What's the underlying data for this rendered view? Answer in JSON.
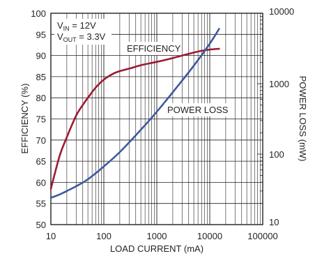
{
  "chart_data": {
    "type": "line",
    "xlabel": "LOAD CURRENT (mA)",
    "ylabel_left": "EFFICIENCY (%)",
    "ylabel_right": "POWER LOSS (mW)",
    "x_scale": "log",
    "xlim": [
      10,
      100000
    ],
    "ylim_left": [
      50,
      100
    ],
    "ylim_right": [
      10,
      10000
    ],
    "y_right_scale": "log",
    "grid": true,
    "x_ticks": [
      "10",
      "100",
      "1000",
      "10000",
      "100000"
    ],
    "y_left_ticks": [
      "50",
      "55",
      "60",
      "65",
      "70",
      "75",
      "80",
      "85",
      "90",
      "95",
      "100"
    ],
    "y_right_ticks": [
      "10",
      "100",
      "1000",
      "10000"
    ],
    "conditions": {
      "vin_main": "V",
      "vin_sub": "IN",
      "vin_value": " = 12V",
      "vout_main": "V",
      "vout_sub": "OUT",
      "vout_value": " = 3.3V"
    },
    "series": [
      {
        "name": "EFFICIENCY",
        "axis": "left",
        "color": "#9b1b30",
        "x": [
          10,
          12,
          15,
          20,
          30,
          40,
          50,
          70,
          100,
          150,
          200,
          300,
          500,
          1000,
          2000,
          3000,
          5000,
          7000,
          10000,
          15000
        ],
        "y": [
          58.5,
          62.3,
          66.7,
          70.7,
          75.8,
          78.3,
          80.0,
          82.4,
          84.3,
          85.7,
          86.3,
          86.9,
          87.7,
          88.5,
          89.4,
          90.0,
          90.7,
          91.1,
          91.4,
          91.6
        ]
      },
      {
        "name": "POWER LOSS",
        "axis": "right",
        "color": "#3c5a9a",
        "x": [
          10,
          15,
          20,
          30,
          50,
          100,
          200,
          500,
          1000,
          2000,
          5000,
          10000,
          15000
        ],
        "y": [
          24,
          27,
          30,
          35,
          44,
          67,
          107,
          222,
          400,
          756,
          1800,
          3700,
          6000
        ]
      }
    ]
  }
}
